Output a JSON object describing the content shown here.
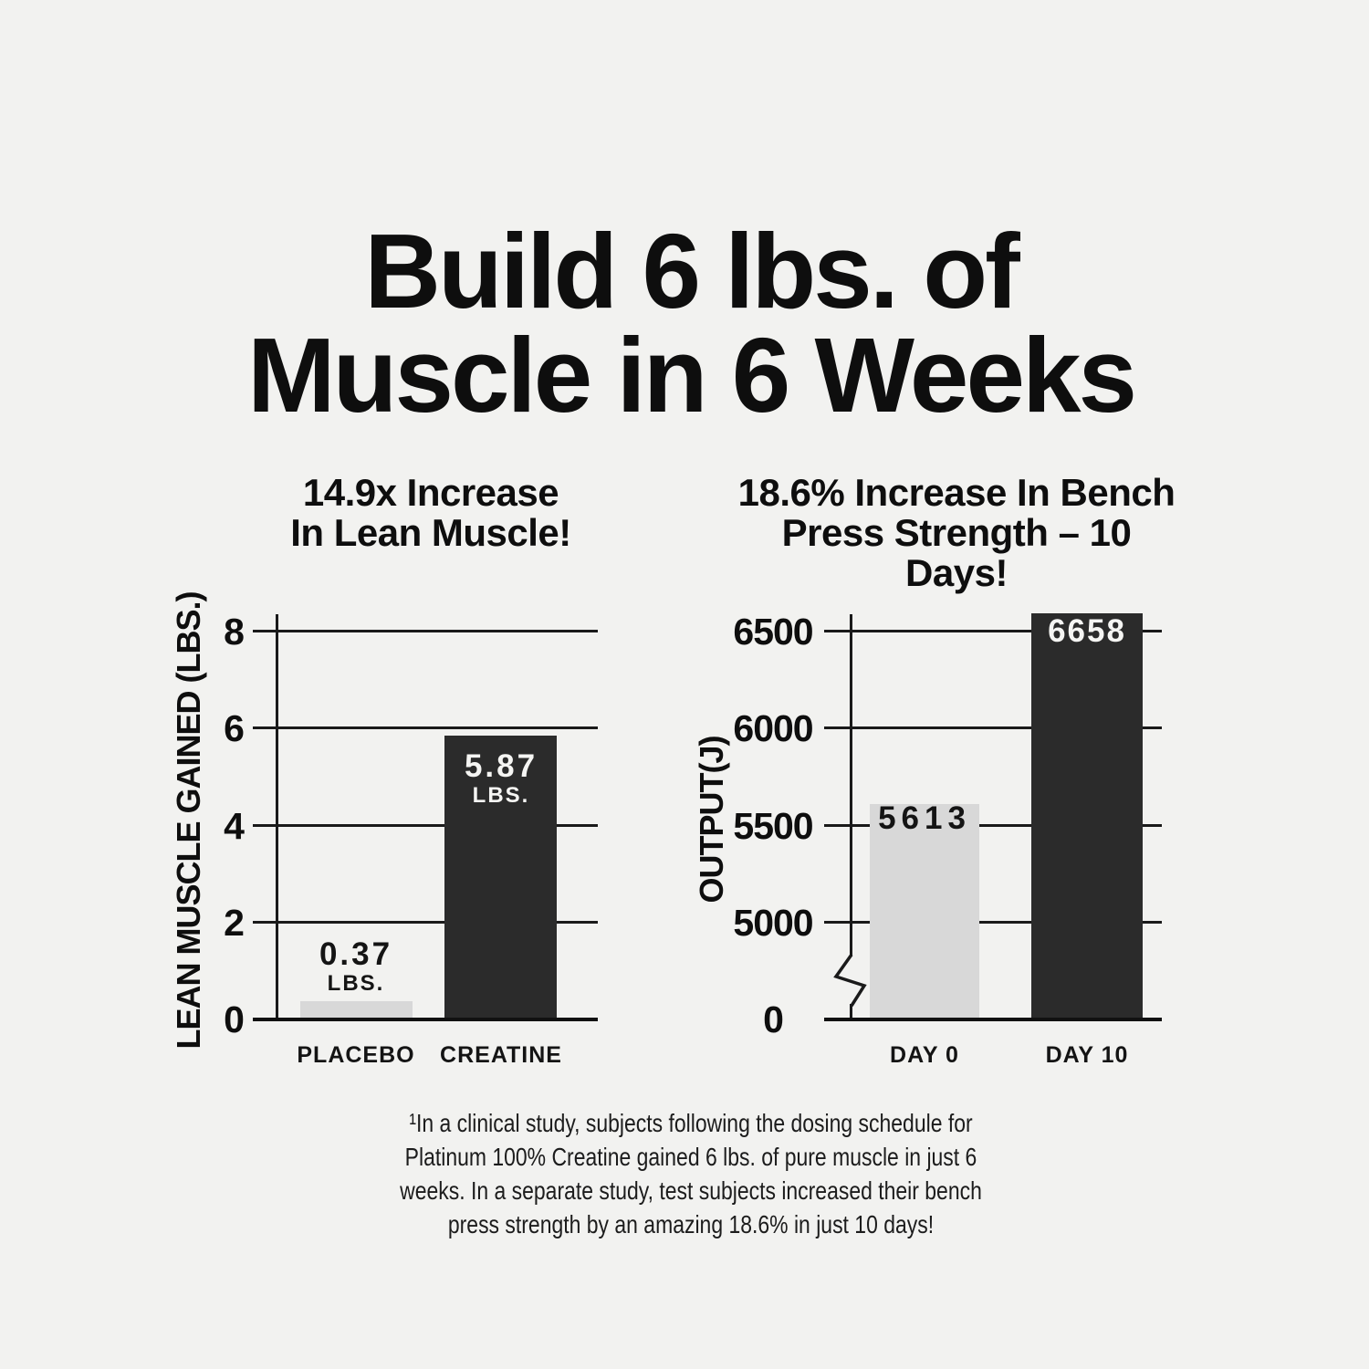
{
  "background": "#f2f2f0",
  "main_title": {
    "line1": "Build 6 lbs. of",
    "line2": "Muscle in 6 Weeks"
  },
  "charts": {
    "left": {
      "title_line1": "14.9x Increase",
      "title_line2": "In Lean Muscle!",
      "y_axis_label": "LEAN MUSCLE GAINED (LBS.)",
      "yticks": [
        "8",
        "6",
        "4",
        "2",
        "0"
      ],
      "categories": [
        "PLACEBO",
        "CREATINE"
      ],
      "bar_values": [
        {
          "line1": "0.37",
          "line2": "LBS."
        },
        {
          "line1": "5.87",
          "line2": "LBS."
        }
      ]
    },
    "right": {
      "title_line1": "18.6% Increase In Bench",
      "title_line2": "Press Strength – 10 Days!",
      "y_axis_label": "OUTPUT(J)",
      "yticks": [
        "6500",
        "6000",
        "5500",
        "5000",
        "0"
      ],
      "categories": [
        "DAY 0",
        "DAY 10"
      ],
      "bar_values": [
        {
          "line1": "5613"
        },
        {
          "line1": "6658"
        }
      ]
    }
  },
  "footnote": {
    "line1": "¹In a clinical study, subjects following the dosing schedule for",
    "line2": "Platinum 100% Creatine gained 6 lbs. of pure muscle in just 6",
    "line3": "weeks. In a separate study, test subjects increased their bench",
    "line4": "press strength by an amazing 18.6% in just 10 days!"
  },
  "colors": {
    "bar_light": "#d8d8d8",
    "bar_dark": "#2b2b2b",
    "line": "#1a1a1a",
    "text": "#0e0e0e"
  },
  "chart_data": [
    {
      "type": "bar",
      "title": "14.9x Increase In Lean Muscle!",
      "categories": [
        "PLACEBO",
        "CREATINE"
      ],
      "values": [
        0.37,
        5.87
      ],
      "value_labels": [
        "0.37 LBS.",
        "5.87 LBS."
      ],
      "xlabel": "",
      "ylabel": "LEAN MUSCLE GAINED (LBS.)",
      "yticks": [
        0,
        2,
        4,
        6,
        8
      ],
      "ylim": [
        0,
        8.4
      ],
      "grid": true,
      "legend": false,
      "bar_colors": [
        "#d8d8d8",
        "#2b2b2b"
      ]
    },
    {
      "type": "bar",
      "title": "18.6% Increase In Bench Press Strength – 10 Days!",
      "categories": [
        "DAY 0",
        "DAY 10"
      ],
      "values": [
        5613,
        6658
      ],
      "value_labels": [
        "5613",
        "6658"
      ],
      "xlabel": "",
      "ylabel": "OUTPUT(J)",
      "yticks": [
        0,
        5000,
        5500,
        6000,
        6500
      ],
      "ylim": [
        0,
        6700
      ],
      "axis_break_between": [
        0,
        5000
      ],
      "grid": true,
      "legend": false,
      "bar_colors": [
        "#d8d8d8",
        "#2b2b2b"
      ]
    }
  ]
}
